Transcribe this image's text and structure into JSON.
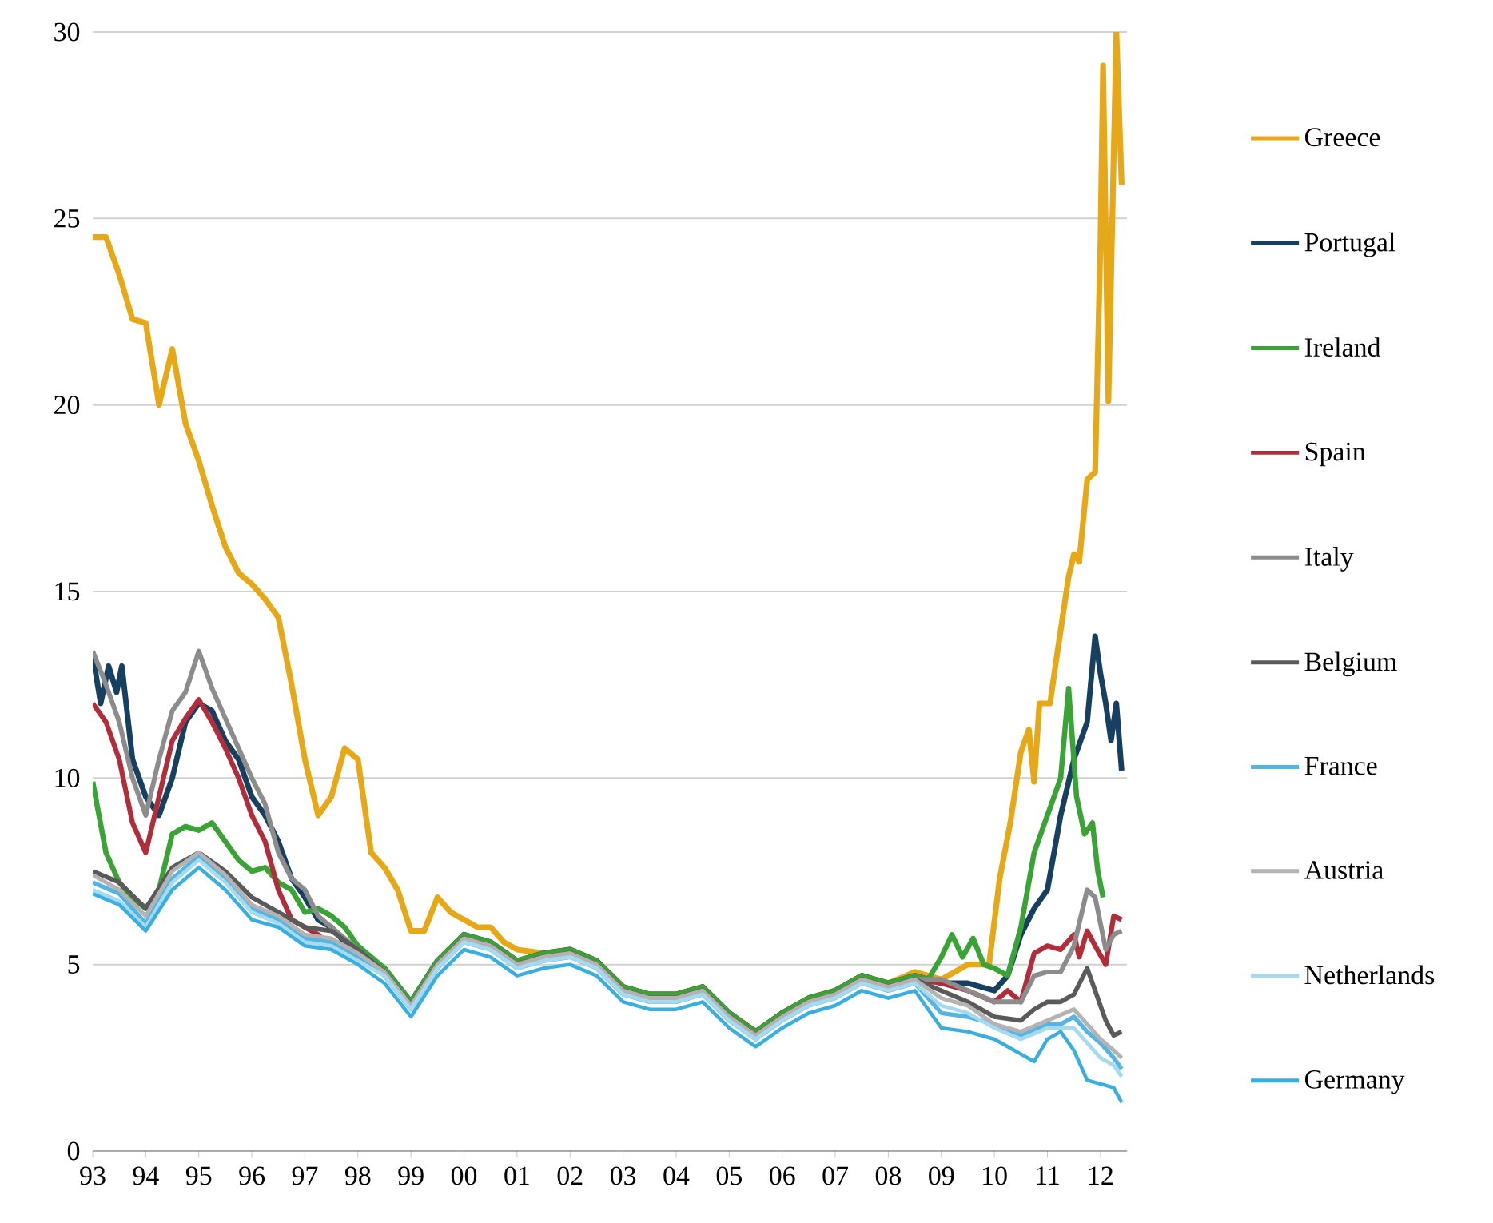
{
  "chart_data": {
    "type": "line",
    "xlim": [
      1993,
      2012.5
    ],
    "ylim": [
      0,
      30
    ],
    "xticks": [
      {
        "value": 1993,
        "label": "93"
      },
      {
        "value": 1994,
        "label": "94"
      },
      {
        "value": 1995,
        "label": "95"
      },
      {
        "value": 1996,
        "label": "96"
      },
      {
        "value": 1997,
        "label": "97"
      },
      {
        "value": 1998,
        "label": "98"
      },
      {
        "value": 1999,
        "label": "99"
      },
      {
        "value": 2000,
        "label": "00"
      },
      {
        "value": 2001,
        "label": "01"
      },
      {
        "value": 2002,
        "label": "02"
      },
      {
        "value": 2003,
        "label": "03"
      },
      {
        "value": 2004,
        "label": "04"
      },
      {
        "value": 2005,
        "label": "05"
      },
      {
        "value": 2006,
        "label": "06"
      },
      {
        "value": 2007,
        "label": "07"
      },
      {
        "value": 2008,
        "label": "08"
      },
      {
        "value": 2009,
        "label": "09"
      },
      {
        "value": 2010,
        "label": "10"
      },
      {
        "value": 2011,
        "label": "11"
      },
      {
        "value": 2012,
        "label": "12"
      }
    ],
    "yticks": [
      0,
      5,
      10,
      15,
      20,
      25,
      30
    ],
    "grid": "y",
    "legend": "right",
    "series": [
      {
        "name": "Greece",
        "color": "#e6a817",
        "x": [
          1993,
          1993.25,
          1993.5,
          1993.75,
          1994,
          1994.25,
          1994.5,
          1994.75,
          1995,
          1995.25,
          1995.5,
          1995.75,
          1996,
          1996.25,
          1996.5,
          1996.75,
          1997,
          1997.25,
          1997.5,
          1997.75,
          1998,
          1998.25,
          1998.5,
          1998.75,
          1999,
          1999.25,
          1999.5,
          1999.75,
          2000,
          2000.25,
          2000.5,
          2000.75,
          2001,
          2001.5,
          2002,
          2002.5,
          2003,
          2003.5,
          2004,
          2004.5,
          2005,
          2005.5,
          2006,
          2006.5,
          2007,
          2007.5,
          2008,
          2008.5,
          2009,
          2009.5,
          2009.9,
          2010.1,
          2010.3,
          2010.5,
          2010.65,
          2010.75,
          2010.85,
          2011.05,
          2011.15,
          2011.4,
          2011.5,
          2011.6,
          2011.75,
          2011.9,
          2012.0,
          2012.05,
          2012.15,
          2012.3,
          2012.4
        ],
        "values": [
          24.5,
          24.5,
          23.5,
          22.3,
          22.2,
          20.0,
          21.5,
          19.5,
          18.5,
          17.3,
          16.2,
          15.5,
          15.2,
          14.8,
          14.3,
          12.5,
          10.5,
          9.0,
          9.5,
          10.8,
          10.5,
          8.0,
          7.6,
          7.0,
          5.9,
          5.9,
          6.8,
          6.4,
          6.2,
          6.0,
          6.0,
          5.6,
          5.4,
          5.3,
          5.4,
          5.1,
          4.4,
          4.2,
          4.2,
          4.4,
          3.7,
          3.2,
          3.7,
          4.1,
          4.3,
          4.7,
          4.5,
          4.8,
          4.6,
          5.0,
          5.0,
          7.3,
          8.8,
          10.7,
          11.3,
          9.9,
          12.0,
          12.0,
          13.0,
          15.4,
          16.0,
          15.8,
          18.0,
          18.2,
          24.4,
          29.1,
          20.1,
          30.0,
          25.9
        ]
      },
      {
        "name": "Portugal",
        "color": "#173f5f",
        "x": [
          1993,
          1993.15,
          1993.3,
          1993.45,
          1993.55,
          1993.75,
          1994,
          1994.25,
          1994.5,
          1994.75,
          1995,
          1995.25,
          1995.5,
          1995.75,
          1996,
          1996.25,
          1996.5,
          1996.75,
          1997,
          1997.25,
          1997.5,
          1997.75,
          1998,
          1998.5,
          1999,
          1999.5,
          2000,
          2000.5,
          2001,
          2001.5,
          2002,
          2002.5,
          2003,
          2003.5,
          2004,
          2004.5,
          2005,
          2005.5,
          2006,
          2006.5,
          2007,
          2007.5,
          2008,
          2008.5,
          2009,
          2009.5,
          2010,
          2010.25,
          2010.5,
          2010.75,
          2011,
          2011.25,
          2011.5,
          2011.75,
          2011.9,
          2012.0,
          2012.1,
          2012.2,
          2012.3,
          2012.4
        ],
        "values": [
          13.3,
          12.0,
          13.0,
          12.3,
          13.0,
          10.5,
          9.5,
          9.0,
          10.0,
          11.5,
          12.0,
          11.8,
          11.0,
          10.5,
          9.5,
          9.0,
          8.3,
          7.3,
          6.8,
          6.2,
          6.0,
          5.6,
          5.4,
          4.9,
          4.0,
          5.1,
          5.8,
          5.6,
          5.1,
          5.3,
          5.4,
          5.1,
          4.4,
          4.2,
          4.2,
          4.4,
          3.7,
          3.2,
          3.7,
          4.1,
          4.3,
          4.7,
          4.5,
          4.7,
          4.5,
          4.5,
          4.3,
          4.7,
          5.8,
          6.5,
          7.0,
          9.0,
          10.5,
          11.5,
          13.8,
          12.8,
          12.0,
          11.0,
          12.0,
          10.2
        ]
      },
      {
        "name": "Ireland",
        "color": "#3aa335",
        "x": [
          1993,
          1993.25,
          1993.5,
          1993.75,
          1994,
          1994.25,
          1994.5,
          1994.75,
          1995,
          1995.25,
          1995.5,
          1995.75,
          1996,
          1996.25,
          1996.5,
          1996.75,
          1997,
          1997.25,
          1997.5,
          1997.75,
          1998,
          1998.5,
          1999,
          1999.5,
          2000,
          2000.5,
          2001,
          2001.5,
          2002,
          2002.5,
          2003,
          2003.5,
          2004,
          2004.5,
          2005,
          2005.5,
          2006,
          2006.5,
          2007,
          2007.5,
          2008,
          2008.5,
          2008.75,
          2009,
          2009.2,
          2009.4,
          2009.6,
          2009.8,
          2010,
          2010.25,
          2010.5,
          2010.75,
          2011,
          2011.25,
          2011.4,
          2011.55,
          2011.7,
          2011.85,
          2011.95,
          2012.05
        ],
        "values": [
          9.9,
          8.0,
          7.2,
          6.8,
          6.5,
          7.0,
          8.5,
          8.7,
          8.6,
          8.8,
          8.3,
          7.8,
          7.5,
          7.6,
          7.2,
          7.0,
          6.4,
          6.5,
          6.3,
          6.0,
          5.5,
          4.9,
          4.0,
          5.1,
          5.8,
          5.6,
          5.1,
          5.3,
          5.4,
          5.1,
          4.4,
          4.2,
          4.2,
          4.4,
          3.7,
          3.2,
          3.7,
          4.1,
          4.3,
          4.7,
          4.5,
          4.7,
          4.6,
          5.2,
          5.8,
          5.2,
          5.7,
          5.0,
          4.9,
          4.7,
          6.0,
          8.0,
          9.0,
          10.0,
          12.4,
          9.5,
          8.5,
          8.8,
          7.5,
          6.8
        ]
      },
      {
        "name": "Spain",
        "color": "#b22d3a",
        "x": [
          1993,
          1993.25,
          1993.5,
          1993.75,
          1994,
          1994.25,
          1994.5,
          1994.75,
          1995,
          1995.25,
          1995.5,
          1995.75,
          1996,
          1996.25,
          1996.5,
          1996.75,
          1997,
          1997.25,
          1997.5,
          1997.75,
          1998,
          1998.5,
          1999,
          1999.5,
          2000,
          2000.5,
          2001,
          2001.5,
          2002,
          2002.5,
          2003,
          2003.5,
          2004,
          2004.5,
          2005,
          2005.5,
          2006,
          2006.5,
          2007,
          2007.5,
          2008,
          2008.5,
          2009,
          2009.5,
          2010,
          2010.25,
          2010.5,
          2010.75,
          2011,
          2011.25,
          2011.5,
          2011.6,
          2011.75,
          2011.9,
          2012.1,
          2012.25,
          2012.4
        ],
        "values": [
          12.0,
          11.5,
          10.5,
          8.8,
          8.0,
          9.5,
          11.0,
          11.6,
          12.1,
          11.5,
          10.8,
          10.0,
          9.0,
          8.3,
          7.0,
          6.2,
          6.0,
          5.8,
          5.5,
          5.5,
          5.3,
          4.8,
          3.9,
          5.0,
          5.7,
          5.5,
          5.0,
          5.2,
          5.3,
          5.0,
          4.3,
          4.1,
          4.1,
          4.3,
          3.6,
          3.1,
          3.6,
          4.0,
          4.2,
          4.6,
          4.4,
          4.6,
          4.5,
          4.3,
          4.0,
          4.3,
          4.0,
          5.3,
          5.5,
          5.4,
          5.8,
          5.2,
          5.9,
          5.5,
          5.0,
          6.3,
          6.2
        ]
      },
      {
        "name": "Italy",
        "color": "#8c8c8c",
        "x": [
          1993,
          1993.25,
          1993.5,
          1993.75,
          1994,
          1994.25,
          1994.5,
          1994.75,
          1995,
          1995.25,
          1995.5,
          1995.75,
          1996,
          1996.25,
          1996.5,
          1996.75,
          1997,
          1997.25,
          1997.5,
          1997.75,
          1998,
          1998.5,
          1999,
          1999.5,
          2000,
          2000.5,
          2001,
          2001.5,
          2002,
          2002.5,
          2003,
          2003.5,
          2004,
          2004.5,
          2005,
          2005.5,
          2006,
          2006.5,
          2007,
          2007.5,
          2008,
          2008.5,
          2009,
          2009.5,
          2010,
          2010.5,
          2010.75,
          2011,
          2011.25,
          2011.5,
          2011.75,
          2011.9,
          2012.1,
          2012.25,
          2012.4
        ],
        "values": [
          13.4,
          12.5,
          11.5,
          10.0,
          9.0,
          10.5,
          11.8,
          12.3,
          13.4,
          12.4,
          11.6,
          10.8,
          10.0,
          9.3,
          8.0,
          7.3,
          7.0,
          6.3,
          6.0,
          5.7,
          5.4,
          4.8,
          3.9,
          5.0,
          5.7,
          5.5,
          5.0,
          5.2,
          5.3,
          5.0,
          4.3,
          4.1,
          4.1,
          4.3,
          3.6,
          3.1,
          3.6,
          4.0,
          4.2,
          4.6,
          4.4,
          4.6,
          4.6,
          4.3,
          4.0,
          4.0,
          4.7,
          4.8,
          4.8,
          5.5,
          7.0,
          6.8,
          5.4,
          5.8,
          5.9
        ]
      },
      {
        "name": "Belgium",
        "color": "#5a5a5a",
        "x": [
          1993,
          1993.5,
          1994,
          1994.5,
          1995,
          1995.5,
          1996,
          1996.5,
          1997,
          1997.5,
          1998,
          1998.5,
          1999,
          1999.5,
          2000,
          2000.5,
          2001,
          2001.5,
          2002,
          2002.5,
          2003,
          2003.5,
          2004,
          2004.5,
          2005,
          2005.5,
          2006,
          2006.5,
          2007,
          2007.5,
          2008,
          2008.5,
          2009,
          2009.5,
          2010,
          2010.5,
          2010.75,
          2011,
          2011.25,
          2011.5,
          2011.75,
          2011.9,
          2012.1,
          2012.25,
          2012.4
        ],
        "values": [
          7.5,
          7.2,
          6.5,
          7.6,
          8.0,
          7.5,
          6.8,
          6.4,
          6.0,
          5.9,
          5.4,
          4.8,
          3.9,
          5.0,
          5.7,
          5.5,
          5.0,
          5.2,
          5.3,
          5.0,
          4.3,
          4.1,
          4.1,
          4.3,
          3.6,
          3.1,
          3.6,
          4.0,
          4.2,
          4.6,
          4.4,
          4.6,
          4.3,
          4.0,
          3.6,
          3.5,
          3.8,
          4.0,
          4.0,
          4.2,
          4.9,
          4.3,
          3.5,
          3.1,
          3.2
        ]
      },
      {
        "name": "France",
        "color": "#56b4e3",
        "x": [
          1993,
          1993.5,
          1994,
          1994.5,
          1995,
          1995.5,
          1996,
          1996.5,
          1997,
          1997.5,
          1998,
          1998.5,
          1999,
          1999.5,
          2000,
          2000.5,
          2001,
          2001.5,
          2002,
          2002.5,
          2003,
          2003.5,
          2004,
          2004.5,
          2005,
          2005.5,
          2006,
          2006.5,
          2007,
          2007.5,
          2008,
          2008.5,
          2009,
          2009.5,
          2010,
          2010.5,
          2011,
          2011.25,
          2011.5,
          2011.75,
          2012,
          2012.25,
          2012.4
        ],
        "values": [
          7.2,
          6.9,
          6.1,
          7.3,
          7.9,
          7.3,
          6.5,
          6.2,
          5.7,
          5.6,
          5.2,
          4.7,
          3.8,
          4.9,
          5.6,
          5.4,
          4.9,
          5.1,
          5.2,
          4.9,
          4.2,
          4.0,
          4.0,
          4.2,
          3.5,
          3.0,
          3.5,
          3.9,
          4.1,
          4.5,
          4.3,
          4.5,
          3.7,
          3.6,
          3.4,
          3.1,
          3.4,
          3.4,
          3.6,
          3.2,
          2.9,
          2.5,
          2.2
        ]
      },
      {
        "name": "Austria",
        "color": "#b3b3b3",
        "x": [
          1993,
          1993.5,
          1994,
          1994.5,
          1995,
          1995.5,
          1996,
          1996.5,
          1997,
          1997.5,
          1998,
          1998.5,
          1999,
          1999.5,
          2000,
          2000.5,
          2001,
          2001.5,
          2002,
          2002.5,
          2003,
          2003.5,
          2004,
          2004.5,
          2005,
          2005.5,
          2006,
          2006.5,
          2007,
          2007.5,
          2008,
          2008.5,
          2009,
          2009.5,
          2010,
          2010.5,
          2011,
          2011.5,
          2011.75,
          2012,
          2012.25,
          2012.4
        ],
        "values": [
          7.4,
          7.0,
          6.3,
          7.5,
          8.0,
          7.4,
          6.6,
          6.3,
          5.8,
          5.7,
          5.3,
          4.8,
          3.9,
          5.0,
          5.7,
          5.5,
          5.0,
          5.2,
          5.3,
          5.0,
          4.3,
          4.1,
          4.1,
          4.3,
          3.6,
          3.1,
          3.6,
          4.0,
          4.2,
          4.6,
          4.4,
          4.6,
          4.1,
          3.9,
          3.4,
          3.2,
          3.5,
          3.8,
          3.4,
          3.0,
          2.7,
          2.5
        ]
      },
      {
        "name": "Netherlands",
        "color": "#a6dbef",
        "x": [
          1993,
          1993.5,
          1994,
          1994.5,
          1995,
          1995.5,
          1996,
          1996.5,
          1997,
          1997.5,
          1998,
          1998.5,
          1999,
          1999.5,
          2000,
          2000.5,
          2001,
          2001.5,
          2002,
          2002.5,
          2003,
          2003.5,
          2004,
          2004.5,
          2005,
          2005.5,
          2006,
          2006.5,
          2007,
          2007.5,
          2008,
          2008.5,
          2009,
          2009.5,
          2010,
          2010.5,
          2011,
          2011.5,
          2011.75,
          2012,
          2012.25,
          2012.4
        ],
        "values": [
          7.0,
          6.7,
          6.0,
          7.2,
          7.8,
          7.2,
          6.4,
          6.1,
          5.6,
          5.5,
          5.1,
          4.7,
          3.8,
          4.9,
          5.6,
          5.4,
          4.9,
          5.1,
          5.2,
          4.9,
          4.2,
          4.0,
          4.0,
          4.2,
          3.5,
          3.0,
          3.5,
          3.9,
          4.1,
          4.5,
          4.3,
          4.5,
          3.9,
          3.7,
          3.3,
          3.0,
          3.3,
          3.3,
          2.9,
          2.5,
          2.3,
          2.0
        ]
      },
      {
        "name": "Germany",
        "color": "#3aaee0",
        "x": [
          1993,
          1993.5,
          1994,
          1994.5,
          1995,
          1995.5,
          1996,
          1996.5,
          1997,
          1997.5,
          1998,
          1998.5,
          1999,
          1999.5,
          2000,
          2000.5,
          2001,
          2001.5,
          2002,
          2002.5,
          2003,
          2003.5,
          2004,
          2004.5,
          2005,
          2005.5,
          2006,
          2006.5,
          2007,
          2007.5,
          2008,
          2008.5,
          2009,
          2009.5,
          2010,
          2010.5,
          2010.75,
          2011,
          2011.25,
          2011.5,
          2011.75,
          2012,
          2012.25,
          2012.4
        ],
        "values": [
          6.9,
          6.6,
          5.9,
          7.0,
          7.6,
          7.0,
          6.2,
          6.0,
          5.5,
          5.4,
          5.0,
          4.5,
          3.6,
          4.7,
          5.4,
          5.2,
          4.7,
          4.9,
          5.0,
          4.7,
          4.0,
          3.8,
          3.8,
          4.0,
          3.3,
          2.8,
          3.3,
          3.7,
          3.9,
          4.3,
          4.1,
          4.3,
          3.3,
          3.2,
          3.0,
          2.6,
          2.4,
          3.0,
          3.2,
          2.7,
          1.9,
          1.8,
          1.7,
          1.3
        ]
      }
    ]
  }
}
